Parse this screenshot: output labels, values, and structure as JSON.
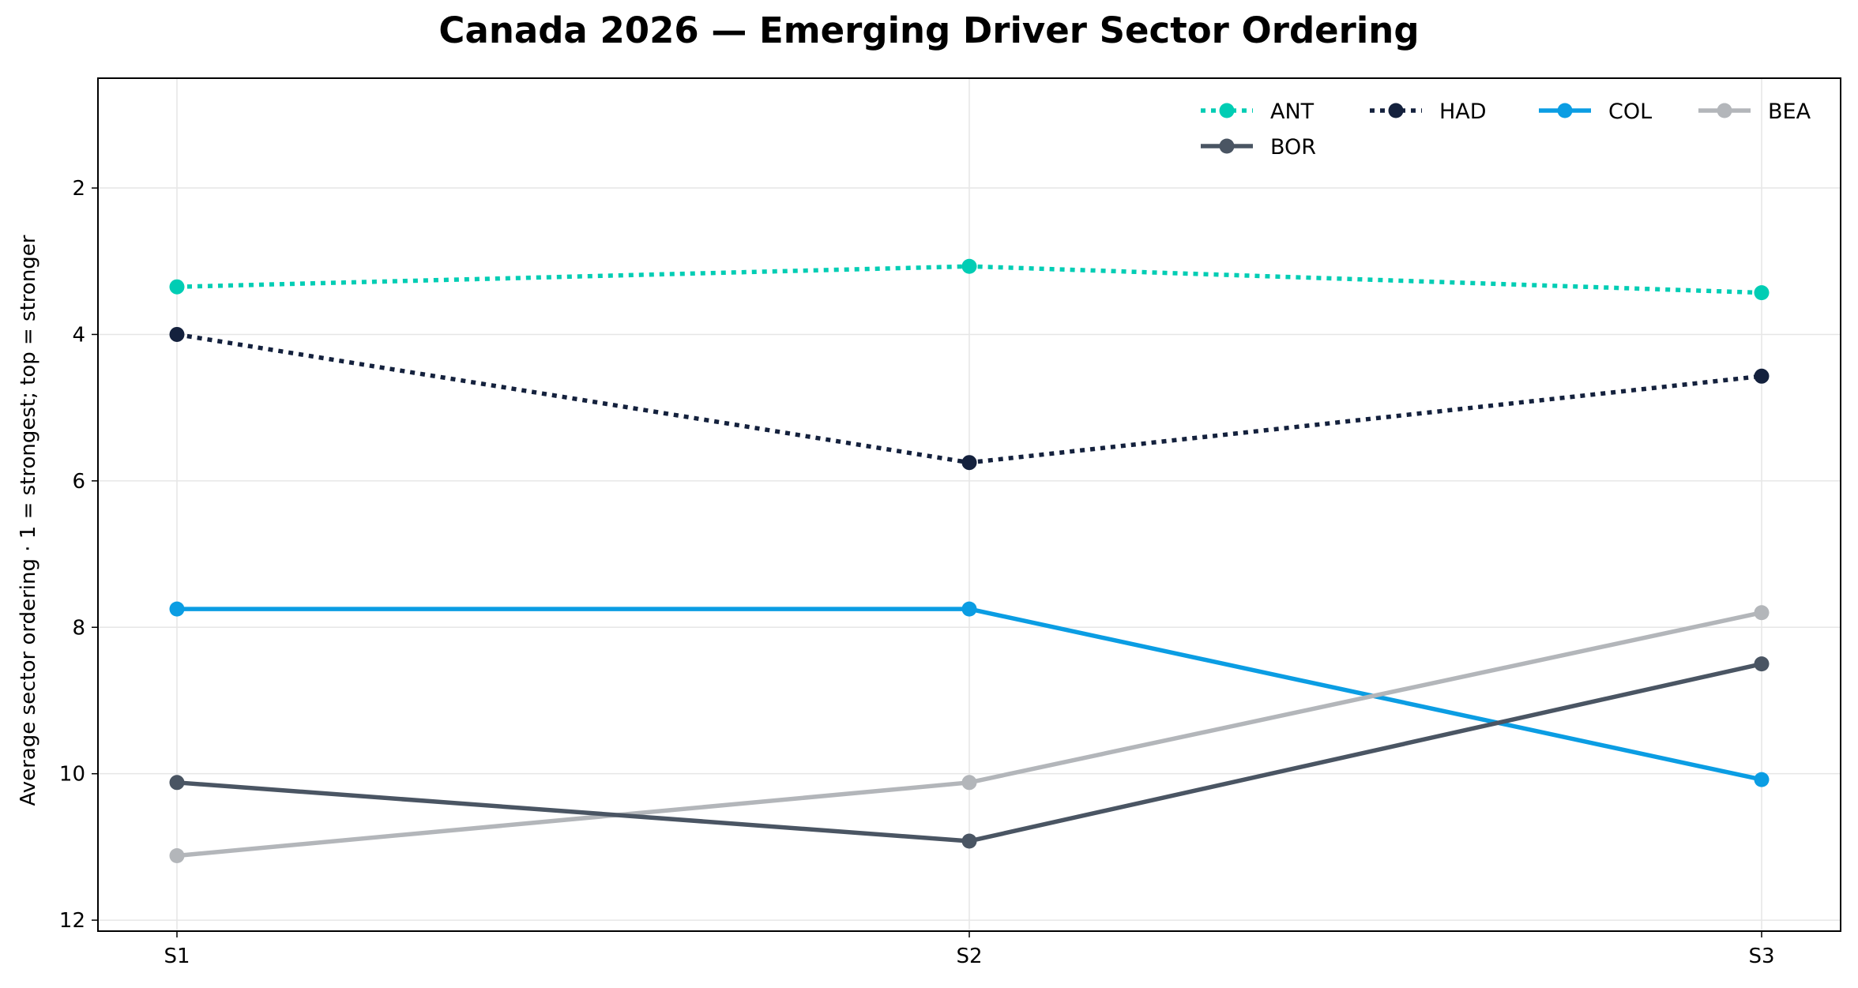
{
  "chart_data": {
    "type": "line",
    "title": "Canada 2026 — Emerging Driver Sector Ordering",
    "xlabel": "",
    "ylabel": "Average sector ordering · 1 = strongest; top = stronger",
    "categories": [
      "S1",
      "S2",
      "S3"
    ],
    "ylim": [
      12.15,
      0.5
    ],
    "y_inverted": true,
    "yticks": [
      2,
      4,
      6,
      8,
      10,
      12
    ],
    "grid": true,
    "legend_position": "top-right",
    "series": [
      {
        "name": "ANT",
        "values": [
          3.35,
          3.07,
          3.43
        ],
        "color": "#00cdb4",
        "dash": "dotted"
      },
      {
        "name": "HAD",
        "values": [
          4.0,
          5.75,
          4.57
        ],
        "color": "#14213d",
        "dash": "dotted"
      },
      {
        "name": "COL",
        "values": [
          7.75,
          7.75,
          10.08
        ],
        "color": "#0b9de3",
        "dash": "solid"
      },
      {
        "name": "BEA",
        "values": [
          11.12,
          10.12,
          7.8
        ],
        "color": "#b3b6ba",
        "dash": "solid"
      },
      {
        "name": "BOR",
        "values": [
          10.12,
          10.92,
          8.5
        ],
        "color": "#4a5563",
        "dash": "solid"
      }
    ]
  }
}
